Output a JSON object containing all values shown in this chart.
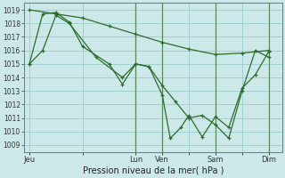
{
  "background_color": "#cce8e8",
  "grid_color": "#99cccc",
  "line_color": "#2d6b2d",
  "xlabel": "Pression niveau de la mer( hPa )",
  "ylim": [
    1008.5,
    1019.5
  ],
  "yticks": [
    1009,
    1010,
    1011,
    1012,
    1013,
    1014,
    1015,
    1016,
    1017,
    1018,
    1019
  ],
  "xtick_labels": [
    "Jeu",
    "",
    "Lun",
    "Ven",
    "",
    "Sam",
    "",
    "Dim"
  ],
  "xtick_positions": [
    0,
    2,
    4,
    5,
    6,
    7,
    8,
    9
  ],
  "series": [
    {
      "x": [
        0,
        0.5,
        1.0,
        1.5,
        2.5,
        3.5,
        4.0,
        4.5,
        5.0,
        5.5,
        6.0,
        6.5,
        7.0,
        7.5,
        8.0,
        8.5,
        9.0
      ],
      "y": [
        1015.0,
        1016.0,
        1018.6,
        1018.0,
        1015.5,
        1014.0,
        1015.0,
        1014.8,
        1013.4,
        1012.2,
        1011.0,
        1011.2,
        1010.5,
        1009.5,
        1013.0,
        1016.0,
        1015.5
      ]
    },
    {
      "x": [
        0,
        0.5,
        1.0,
        1.5,
        2.0,
        3.0,
        3.5,
        4.0,
        4.5,
        5.0,
        5.3,
        5.7,
        6.0,
        6.5,
        7.0,
        7.5,
        8.0,
        8.5,
        9.0
      ],
      "y": [
        1015.0,
        1018.7,
        1018.8,
        1018.1,
        1016.3,
        1015.0,
        1013.5,
        1015.0,
        1014.8,
        1012.7,
        1009.5,
        1010.3,
        1011.2,
        1009.6,
        1011.1,
        1010.3,
        1013.2,
        1014.2,
        1015.9
      ]
    },
    {
      "x": [
        0,
        1.0,
        2.0,
        3.0,
        4.0,
        5.0,
        6.0,
        7.0,
        8.0,
        9.0
      ],
      "y": [
        1019.0,
        1018.7,
        1018.4,
        1017.8,
        1017.2,
        1016.6,
        1016.1,
        1015.7,
        1015.8,
        1016.0
      ]
    }
  ],
  "vline_positions": [
    4,
    5,
    7,
    9
  ],
  "figsize": [
    3.2,
    2.0
  ],
  "dpi": 100
}
